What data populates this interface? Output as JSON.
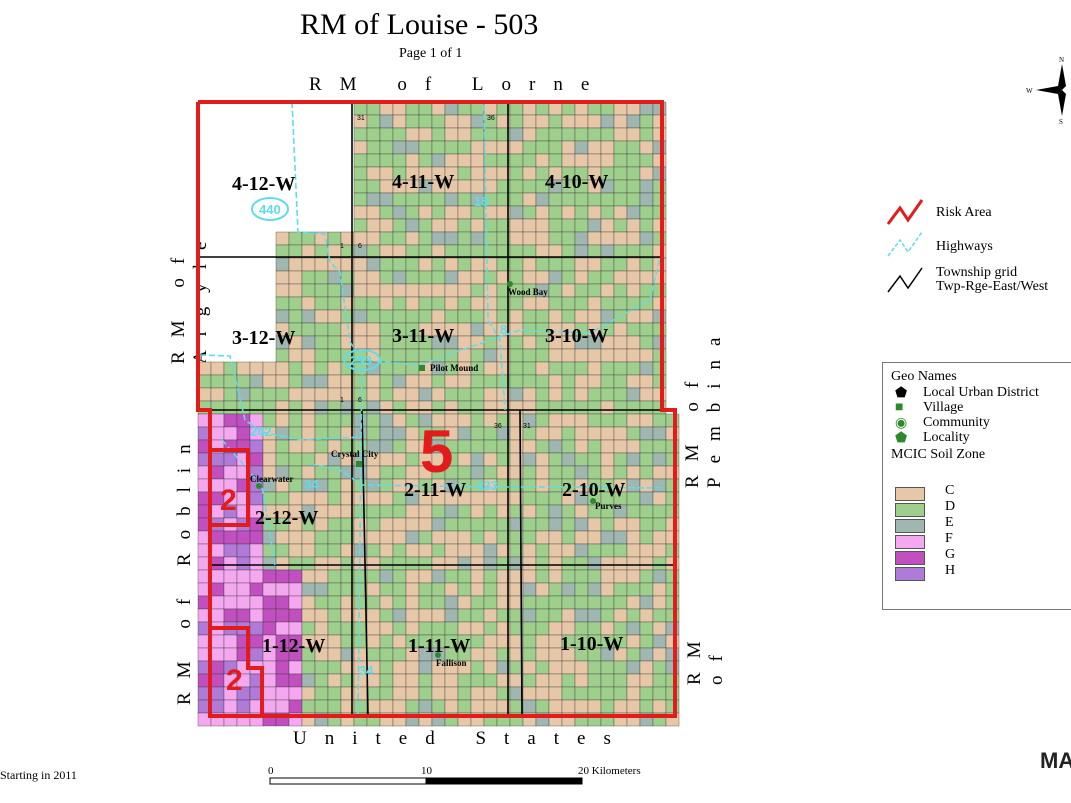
{
  "title": "RM of Louise - 503",
  "subtitle": "Page 1 of 1",
  "neighbors": {
    "top": "RM of Lorne",
    "left_top": "RM of Argyle",
    "left_bottom": "RM of Roblin",
    "right_top": "RM of Pembina",
    "right_bottom": "RM of",
    "bottom": "United States"
  },
  "risk_area_labels": [
    "5",
    "2",
    "2"
  ],
  "township_labels": [
    "4-12-W",
    "4-11-W",
    "4-10-W",
    "3-12-W",
    "3-11-W",
    "3-10-W",
    "2-12-W",
    "2-11-W",
    "2-10-W",
    "1-12-W",
    "1-11-W",
    "1-10-W"
  ],
  "highway_shields": [
    "440",
    "18",
    "253",
    "8",
    "242",
    "34",
    "423",
    "34"
  ],
  "places": [
    "Wood Bay",
    "Pilot Mound",
    "Crystal City",
    "Clearwater",
    "Purves",
    "Fallison"
  ],
  "corner_numbers": [
    "31",
    "36",
    "1",
    "6"
  ],
  "legend_lines": {
    "risk_area": "Risk Area",
    "highways": "Highways",
    "township_grid": "Township grid",
    "township_grid_sub": "Twp-Rge-East/West"
  },
  "legend_geo": {
    "header": "Geo Names",
    "items": [
      "Local Urban District",
      "Village",
      "Community",
      "Locality"
    ],
    "soil_header": "MCIC Soil Zone",
    "soil_zones": [
      "C",
      "D",
      "E",
      "F",
      "G",
      "H"
    ],
    "soil_colors": {
      "C": "#e6c8a8",
      "D": "#9fcf8c",
      "E": "#9fb7b0",
      "F": "#f4a8f0",
      "G": "#c24fc0",
      "H": "#b07ad8"
    }
  },
  "scale": {
    "labels": [
      "0",
      "10",
      "20 Kilometers"
    ]
  },
  "footer_note": "Starting in 2011",
  "logo_text": "MA",
  "colors": {
    "risk": "#e31b1b",
    "highway": "#5fdcea",
    "grid": "#000000"
  }
}
